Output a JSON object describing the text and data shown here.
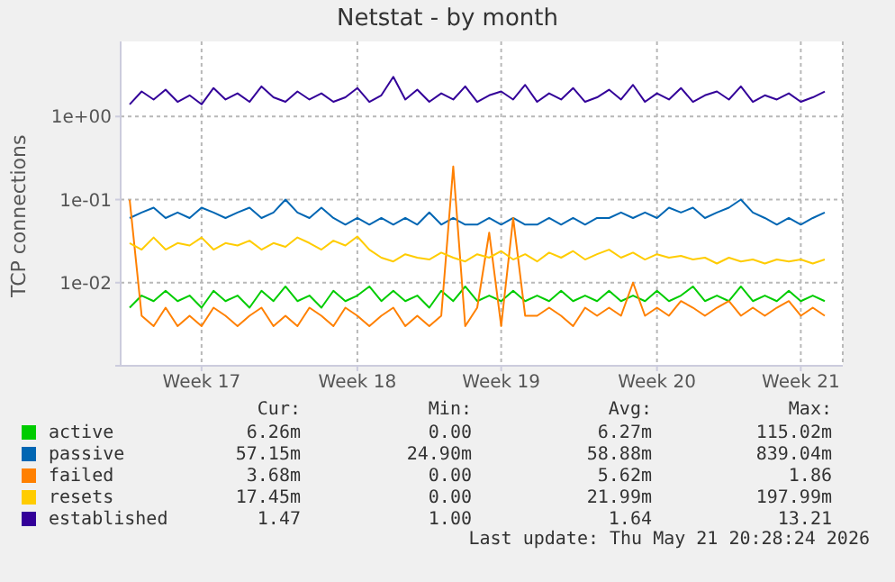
{
  "chart_data": {
    "type": "line",
    "title": "Netstat - by month",
    "ylabel": "TCP connections",
    "log": "y",
    "grid": true,
    "legend": "bottom",
    "marker": "none",
    "line_style": "solid",
    "categories": [
      null,
      null,
      null,
      null,
      null,
      null,
      "Week 17",
      null,
      null,
      null,
      null,
      null,
      null,
      null,
      null,
      null,
      null,
      null,
      null,
      "Week 18",
      null,
      null,
      null,
      null,
      null,
      null,
      null,
      null,
      null,
      null,
      null,
      "Week 19",
      null,
      null,
      null,
      null,
      null,
      null,
      null,
      null,
      null,
      null,
      null,
      null,
      "Week 20",
      null,
      null,
      null,
      null,
      null,
      null,
      null,
      null,
      null,
      null,
      null,
      "Week 21",
      null,
      null
    ],
    "ylim": [
      0.001,
      8
    ],
    "yticks": [
      {
        "value": 0.001,
        "label": null
      },
      {
        "value": 0.01,
        "label": "1e-02"
      },
      {
        "value": 0.1,
        "label": "1e-01"
      },
      {
        "value": 1,
        "label": "1e+00"
      }
    ],
    "series": [
      {
        "name": "active",
        "color": "#00cc00",
        "values": [
          0.005,
          0.007,
          0.006,
          0.008,
          0.006,
          0.007,
          0.005,
          0.008,
          0.006,
          0.007,
          0.005,
          0.008,
          0.006,
          0.009,
          0.006,
          0.007,
          0.005,
          0.008,
          0.006,
          0.007,
          0.009,
          0.006,
          0.008,
          0.006,
          0.007,
          0.005,
          0.008,
          0.006,
          0.009,
          0.006,
          0.007,
          0.006,
          0.008,
          0.006,
          0.007,
          0.006,
          0.008,
          0.006,
          0.007,
          0.006,
          0.008,
          0.006,
          0.007,
          0.006,
          0.008,
          0.006,
          0.007,
          0.009,
          0.006,
          0.007,
          0.006,
          0.009,
          0.006,
          0.007,
          0.006,
          0.008,
          0.006,
          0.007,
          0.006
        ]
      },
      {
        "name": "passive",
        "color": "#0066b3",
        "values": [
          0.06,
          0.07,
          0.08,
          0.06,
          0.07,
          0.06,
          0.08,
          0.07,
          0.06,
          0.07,
          0.08,
          0.06,
          0.07,
          0.1,
          0.07,
          0.06,
          0.08,
          0.06,
          0.05,
          0.06,
          0.05,
          0.06,
          0.05,
          0.06,
          0.05,
          0.07,
          0.05,
          0.06,
          0.05,
          0.05,
          0.06,
          0.05,
          0.06,
          0.05,
          0.05,
          0.06,
          0.05,
          0.06,
          0.05,
          0.06,
          0.06,
          0.07,
          0.06,
          0.07,
          0.06,
          0.08,
          0.07,
          0.08,
          0.06,
          0.07,
          0.08,
          0.1,
          0.07,
          0.06,
          0.05,
          0.06,
          0.05,
          0.06,
          0.07
        ]
      },
      {
        "name": "failed",
        "color": "#ff8000",
        "values": [
          0.1,
          0.004,
          0.003,
          0.005,
          0.003,
          0.004,
          0.003,
          0.005,
          0.004,
          0.003,
          0.004,
          0.005,
          0.003,
          0.004,
          0.003,
          0.005,
          0.004,
          0.003,
          0.005,
          0.004,
          0.003,
          0.004,
          0.005,
          0.003,
          0.004,
          0.003,
          0.004,
          0.25,
          0.003,
          0.005,
          0.04,
          0.003,
          0.06,
          0.004,
          0.004,
          0.005,
          0.004,
          0.003,
          0.005,
          0.004,
          0.005,
          0.004,
          0.01,
          0.004,
          0.005,
          0.004,
          0.006,
          0.005,
          0.004,
          0.005,
          0.006,
          0.004,
          0.005,
          0.004,
          0.005,
          0.006,
          0.004,
          0.005,
          0.004
        ]
      },
      {
        "name": "resets",
        "color": "#ffcc00",
        "values": [
          0.03,
          0.025,
          0.035,
          0.025,
          0.03,
          0.028,
          0.035,
          0.025,
          0.03,
          0.028,
          0.032,
          0.025,
          0.03,
          0.027,
          0.035,
          0.03,
          0.025,
          0.032,
          0.028,
          0.036,
          0.025,
          0.02,
          0.018,
          0.022,
          0.02,
          0.019,
          0.023,
          0.02,
          0.018,
          0.022,
          0.02,
          0.024,
          0.019,
          0.022,
          0.018,
          0.023,
          0.02,
          0.024,
          0.019,
          0.022,
          0.025,
          0.02,
          0.023,
          0.019,
          0.022,
          0.02,
          0.021,
          0.019,
          0.02,
          0.017,
          0.02,
          0.018,
          0.019,
          0.017,
          0.019,
          0.018,
          0.019,
          0.017,
          0.019
        ]
      },
      {
        "name": "established",
        "color": "#330099",
        "values": [
          1.4,
          2.0,
          1.6,
          2.1,
          1.5,
          1.8,
          1.4,
          2.2,
          1.6,
          1.9,
          1.5,
          2.3,
          1.7,
          1.5,
          2.0,
          1.6,
          1.9,
          1.5,
          1.7,
          2.2,
          1.5,
          1.8,
          3.0,
          1.6,
          2.1,
          1.5,
          1.9,
          1.6,
          2.3,
          1.5,
          1.8,
          2.0,
          1.6,
          2.4,
          1.5,
          1.9,
          1.6,
          2.2,
          1.5,
          1.7,
          2.1,
          1.6,
          2.4,
          1.5,
          1.9,
          1.6,
          2.2,
          1.5,
          1.8,
          2.0,
          1.6,
          2.3,
          1.5,
          1.8,
          1.6,
          1.9,
          1.5,
          1.7,
          2.0
        ]
      }
    ],
    "annotations": [
      "Cur: Min: Avg: Max:",
      "6.26m 0.00 6.27m 115.02m",
      "57.15m 24.90m 58.88m 839.04m",
      "3.68m 0.00 5.62m 1.86",
      "17.45m 0.00 21.99m 197.99m",
      "1.47 1.00 1.64 13.21",
      "Last update: Thu May 21 20:28:24 2026"
    ]
  }
}
